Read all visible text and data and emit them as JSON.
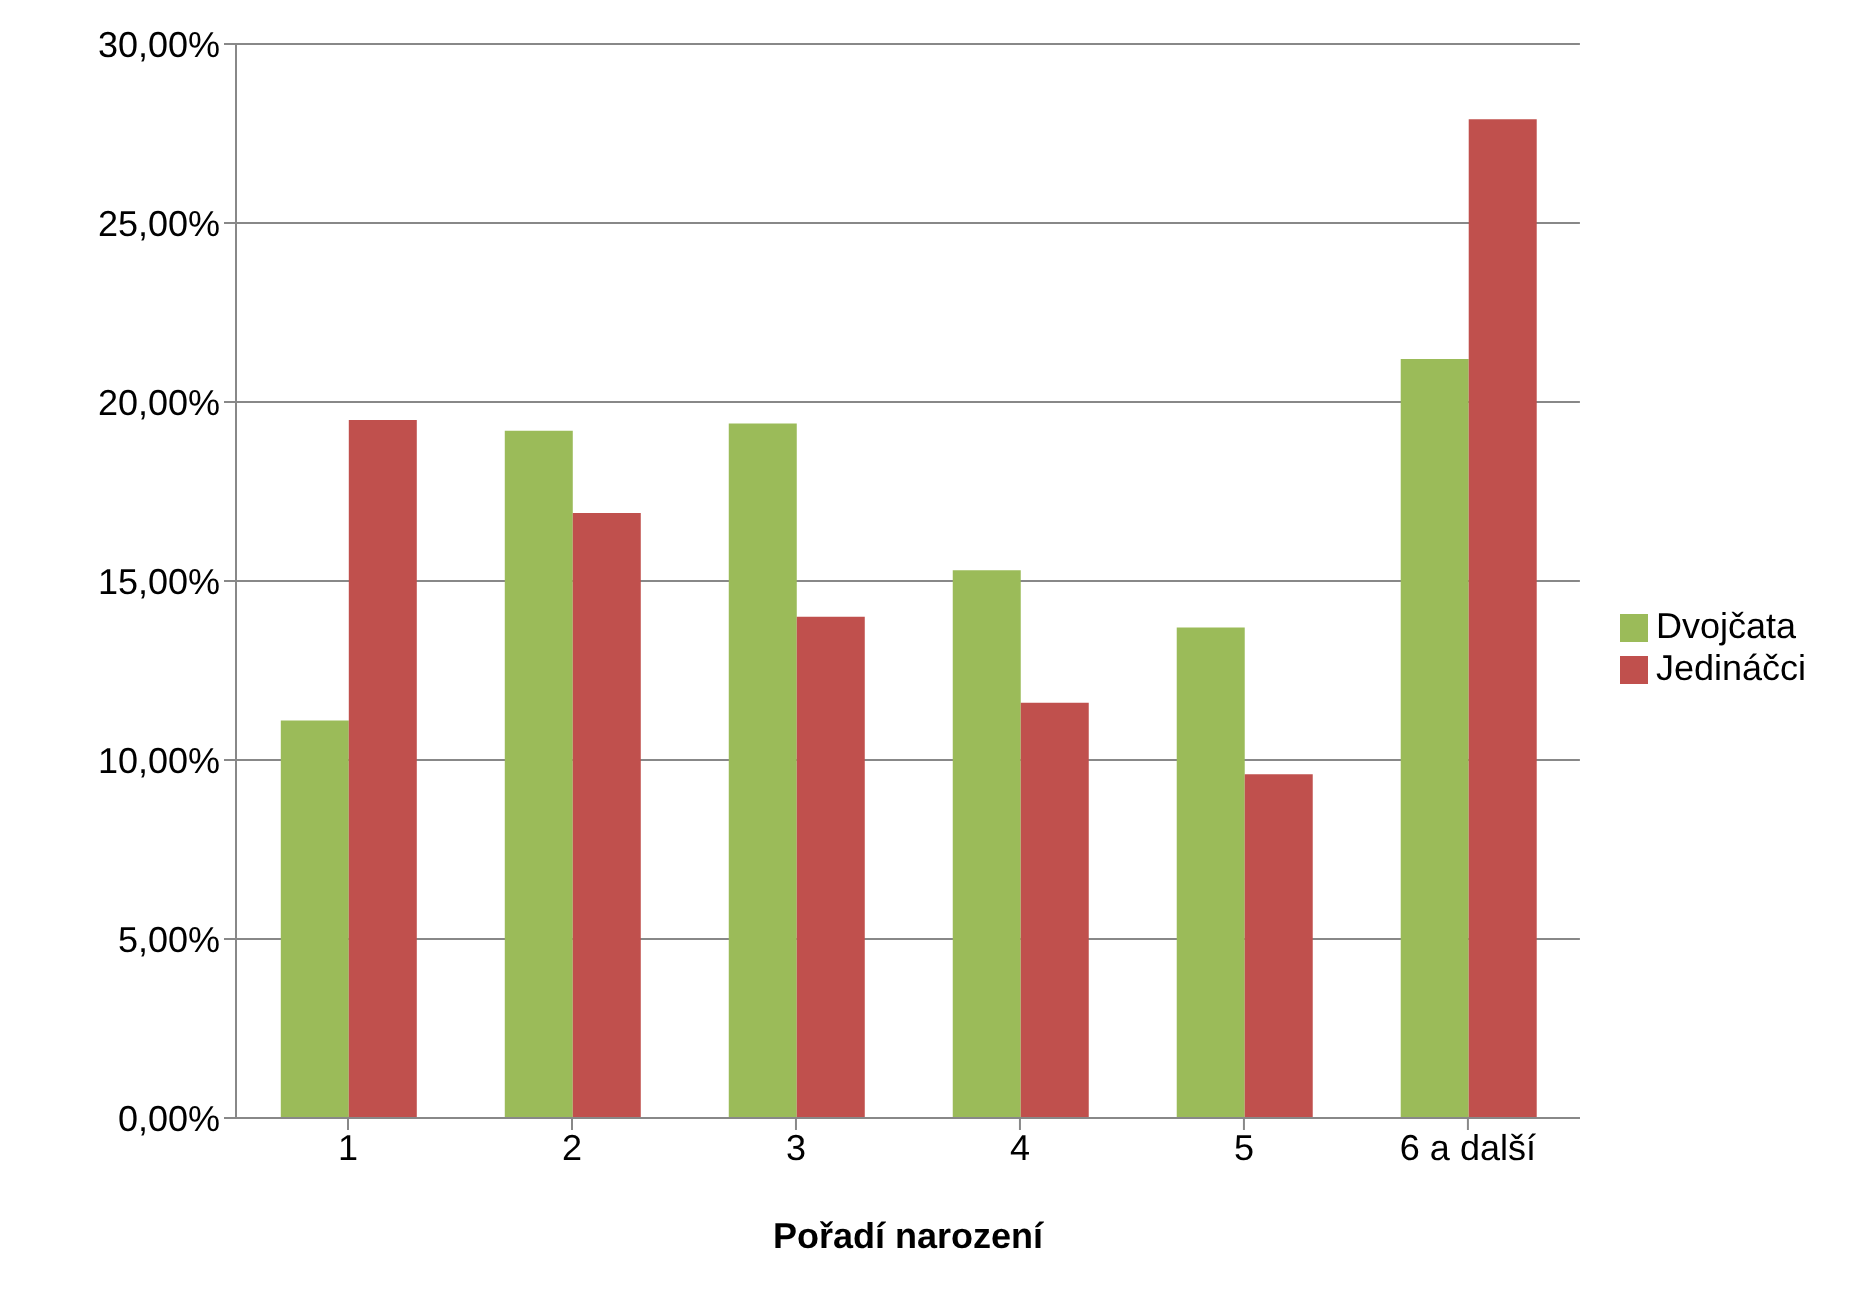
{
  "chart_data": {
    "type": "bar",
    "xlabel": "Pořadí narození",
    "categories": [
      "1",
      "2",
      "3",
      "4",
      "5",
      "6 a další"
    ],
    "series": [
      {
        "name": "Dvojčata",
        "color": "#9bbb59",
        "values": [
          11.1,
          19.2,
          19.4,
          15.3,
          13.7,
          21.2
        ]
      },
      {
        "name": "Jedináčci",
        "color": "#c0504d",
        "values": [
          19.5,
          16.9,
          14.0,
          11.6,
          9.6,
          27.9
        ]
      }
    ],
    "ylim": [
      0,
      30
    ],
    "yticks": [
      {
        "value": 0,
        "label": "0,00%"
      },
      {
        "value": 5,
        "label": "5,00%"
      },
      {
        "value": 10,
        "label": "10,00%"
      },
      {
        "value": 15,
        "label": "15,00%"
      },
      {
        "value": 20,
        "label": "20,00%"
      },
      {
        "value": 25,
        "label": "25,00%"
      },
      {
        "value": 30,
        "label": "30,00%"
      }
    ],
    "grid": "y",
    "legend": "right"
  }
}
